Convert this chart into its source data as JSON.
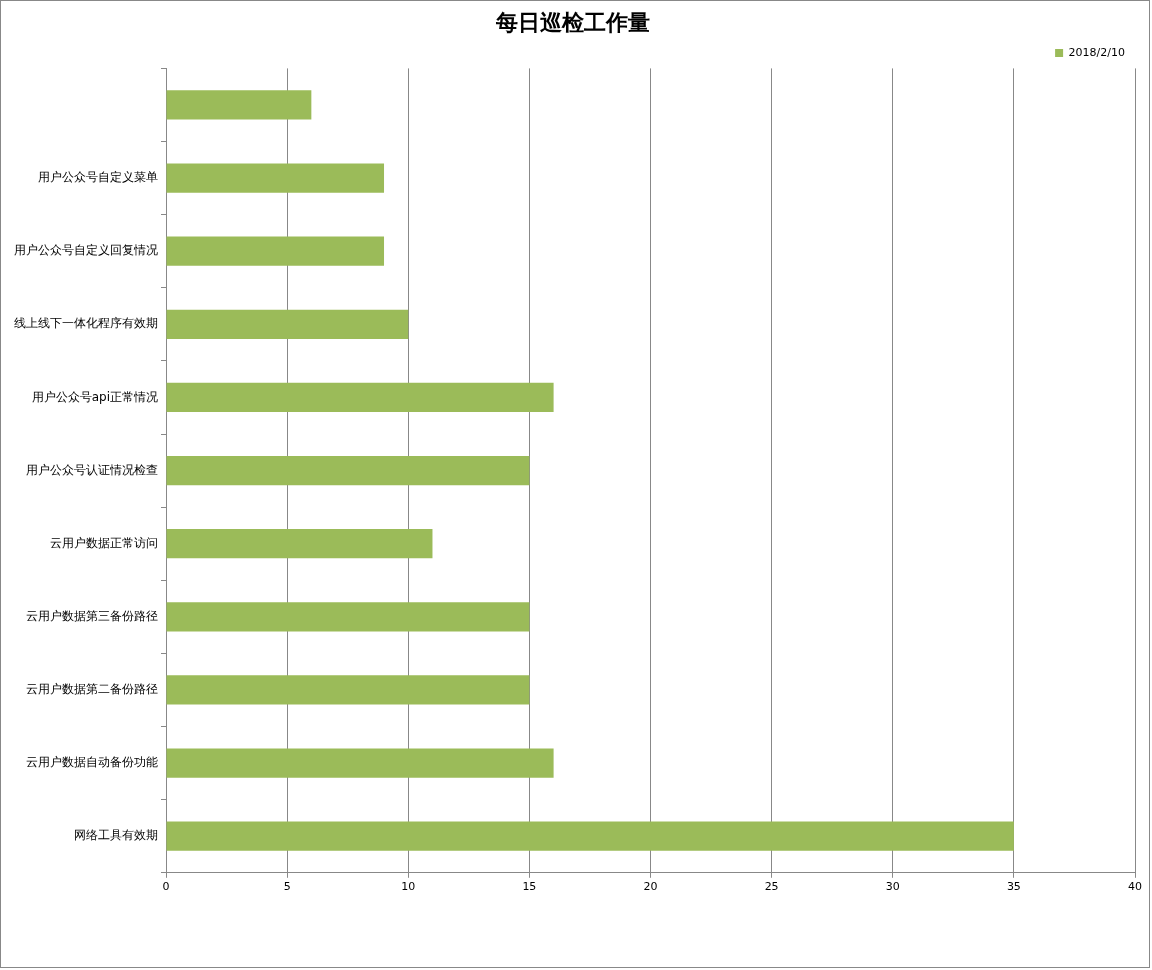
{
  "chart_data": {
    "type": "bar",
    "orientation": "horizontal",
    "title": "每日巡检工作量",
    "categories": [
      null,
      "用户公众号自定义菜单",
      "用户公众号自定义回复情况",
      "线上线下一体化程序有效期",
      "用户公众号api正常情况",
      "用户公众号认证情况检查",
      "云用户数据正常访问",
      "云用户数据第三备份路径",
      "云用户数据第二备份路径",
      "云用户数据自动备份功能",
      "网络工具有效期"
    ],
    "series": [
      {
        "name": "2018/2/10",
        "color": "#9bbb59",
        "values": [
          6,
          9,
          9,
          10,
          16,
          15,
          11,
          15,
          15,
          16,
          35
        ]
      }
    ],
    "xlim": [
      0,
      40
    ],
    "xticks": [
      0,
      5,
      10,
      15,
      20,
      25,
      30,
      35,
      40
    ],
    "grid": "x",
    "legend": "top right"
  }
}
